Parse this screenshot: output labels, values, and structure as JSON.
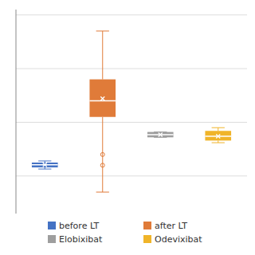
{
  "chart_data": {
    "type": "box",
    "categories": [
      "before LT",
      "after LT",
      "Elobixibat",
      "Odevixibat"
    ],
    "colors": [
      "#4472c4",
      "#e07b39",
      "#9e9e9e",
      "#f0b429"
    ],
    "boxes": [
      {
        "q1": 0.8,
        "median": 1.05,
        "q3": 1.25,
        "mean": 1.05,
        "whislo": 0.65,
        "whishi": 1.4
      },
      {
        "q1": 5.5,
        "median": 7.0,
        "q3": 9.0,
        "mean": 7.2,
        "whislo": -1.5,
        "whishi": 13.5
      },
      {
        "q1": 3.6,
        "median": 3.85,
        "q3": 4.1,
        "mean": 3.85,
        "whislo": 3.6,
        "whishi": 4.1
      },
      {
        "q1": 3.3,
        "median": 3.7,
        "q3": 4.2,
        "mean": 3.7,
        "whislo": 3.1,
        "whishi": 4.5
      }
    ],
    "outliers": [
      [],
      [
        1.0,
        2.0
      ],
      [],
      []
    ],
    "ylim": [
      -3.5,
      15.5
    ],
    "yticks": [
      0,
      5,
      10,
      15
    ],
    "grid": true,
    "tick_labels": false,
    "legend": "bottom"
  }
}
